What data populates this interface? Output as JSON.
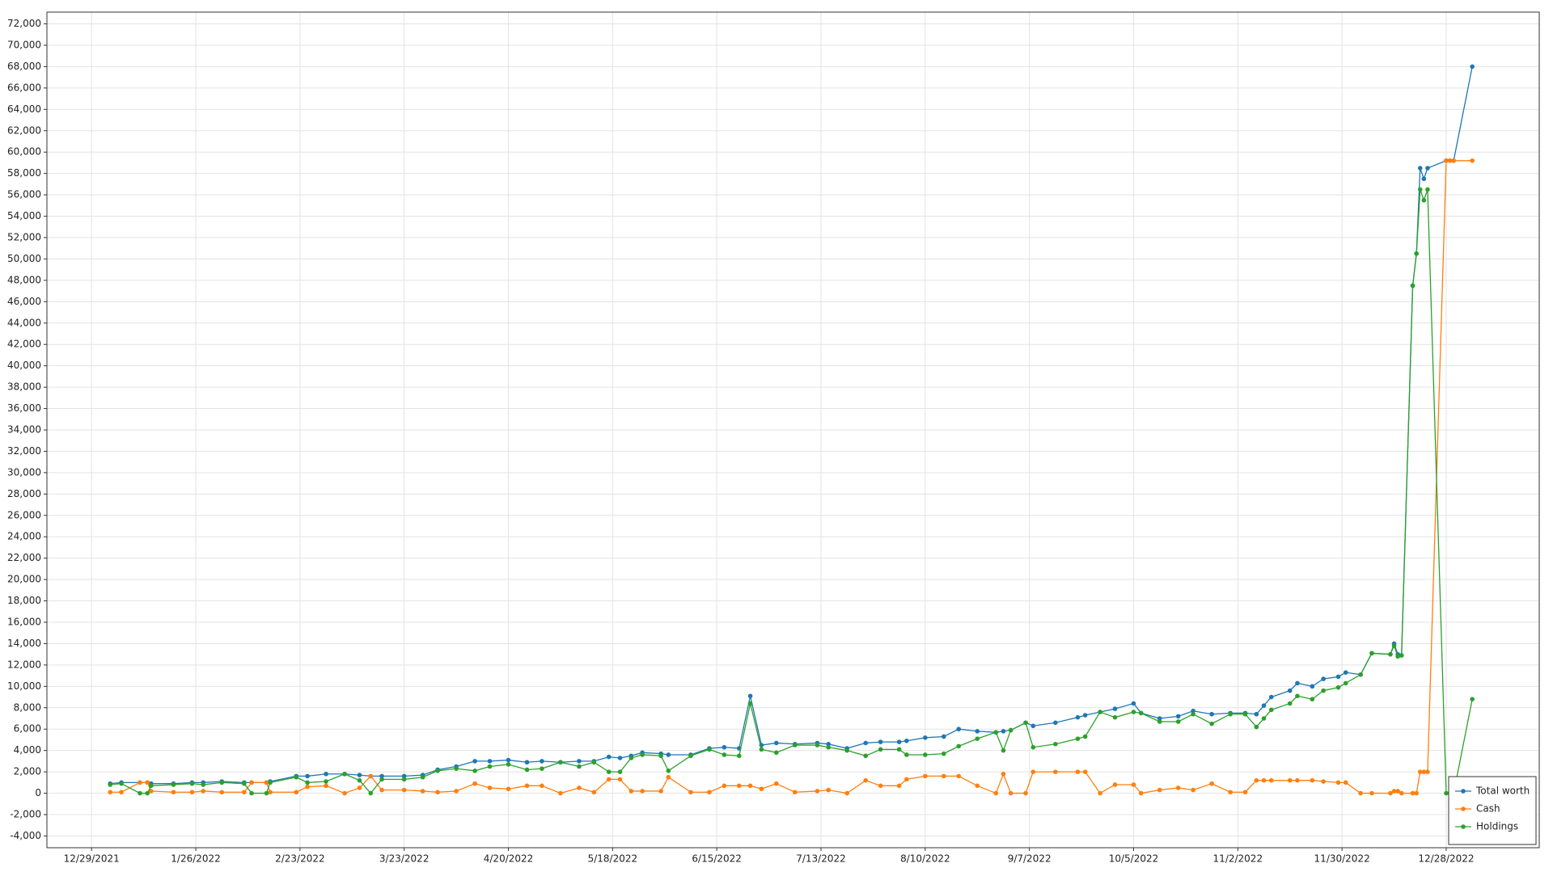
{
  "chart_data": {
    "type": "line",
    "x": [
      "2022-01-03",
      "2022-01-06",
      "2022-01-11",
      "2022-01-13",
      "2022-01-14",
      "2022-01-20",
      "2022-01-25",
      "2022-01-28",
      "2022-02-02",
      "2022-02-08",
      "2022-02-10",
      "2022-02-14",
      "2022-02-15",
      "2022-02-22",
      "2022-02-25",
      "2022-03-02",
      "2022-03-07",
      "2022-03-11",
      "2022-03-14",
      "2022-03-17",
      "2022-03-23",
      "2022-03-28",
      "2022-04-01",
      "2022-04-06",
      "2022-04-11",
      "2022-04-15",
      "2022-04-20",
      "2022-04-25",
      "2022-04-29",
      "2022-05-04",
      "2022-05-09",
      "2022-05-13",
      "2022-05-17",
      "2022-05-20",
      "2022-05-23",
      "2022-05-26",
      "2022-05-31",
      "2022-06-02",
      "2022-06-08",
      "2022-06-13",
      "2022-06-17",
      "2022-06-21",
      "2022-06-24",
      "2022-06-27",
      "2022-07-01",
      "2022-07-06",
      "2022-07-12",
      "2022-07-15",
      "2022-07-20",
      "2022-07-25",
      "2022-07-29",
      "2022-08-03",
      "2022-08-05",
      "2022-08-10",
      "2022-08-15",
      "2022-08-19",
      "2022-08-24",
      "2022-08-29",
      "2022-08-31",
      "2022-09-02",
      "2022-09-06",
      "2022-09-08",
      "2022-09-14",
      "2022-09-20",
      "2022-09-22",
      "2022-09-26",
      "2022-09-30",
      "2022-10-05",
      "2022-10-07",
      "2022-10-12",
      "2022-10-17",
      "2022-10-21",
      "2022-10-26",
      "2022-10-31",
      "2022-11-04",
      "2022-11-07",
      "2022-11-09",
      "2022-11-11",
      "2022-11-16",
      "2022-11-18",
      "2022-11-22",
      "2022-11-25",
      "2022-11-29",
      "2022-12-01",
      "2022-12-05",
      "2022-12-08",
      "2022-12-13",
      "2022-12-14",
      "2022-12-15",
      "2022-12-16",
      "2022-12-19",
      "2022-12-20",
      "2022-12-21",
      "2022-12-22",
      "2022-12-23",
      "2022-12-28",
      "2022-12-29",
      "2022-12-30",
      "2023-01-04"
    ],
    "series": [
      {
        "name": "Total worth",
        "color": "#1f77b4",
        "values": [
          900,
          1000,
          1000,
          1000,
          900,
          900,
          1000,
          1000,
          1100,
          1000,
          1000,
          1000,
          1100,
          1600,
          1600,
          1800,
          1800,
          1700,
          1600,
          1600,
          1600,
          1700,
          2200,
          2500,
          3000,
          3000,
          3100,
          2900,
          3000,
          2900,
          3000,
          3000,
          3400,
          3300,
          3500,
          3800,
          3700,
          3600,
          3600,
          4200,
          4300,
          4200,
          9100,
          4500,
          4700,
          4600,
          4700,
          4600,
          4200,
          4700,
          4800,
          4800,
          4900,
          5200,
          5300,
          6000,
          5800,
          5700,
          5800,
          5900,
          6600,
          6300,
          6600,
          7100,
          7300,
          7600,
          7900,
          8400,
          7500,
          7000,
          7200,
          7700,
          7400,
          7500,
          7500,
          7400,
          8200,
          9000,
          9600,
          10300,
          10000,
          10700,
          10900,
          11300,
          11100,
          13100,
          13000,
          14000,
          13000,
          12900,
          47500,
          50500,
          58500,
          57500,
          58500,
          59200,
          59200,
          59200,
          68000
        ]
      },
      {
        "name": "Cash",
        "color": "#ff7f0e",
        "values": [
          100,
          100,
          1000,
          1000,
          200,
          100,
          100,
          200,
          100,
          100,
          1000,
          1000,
          100,
          100,
          600,
          700,
          0,
          500,
          1600,
          300,
          300,
          200,
          100,
          200,
          900,
          500,
          400,
          700,
          700,
          0,
          500,
          100,
          1300,
          1300,
          200,
          200,
          200,
          1500,
          100,
          100,
          700,
          700,
          700,
          400,
          900,
          100,
          200,
          300,
          0,
          1200,
          700,
          700,
          1300,
          1600,
          1600,
          1600,
          700,
          0,
          1800,
          0,
          0,
          2000,
          2000,
          2000,
          2000,
          0,
          800,
          800,
          0,
          300,
          500,
          300,
          900,
          100,
          100,
          1200,
          1200,
          1200,
          1200,
          1200,
          1200,
          1100,
          1000,
          1000,
          0,
          0,
          0,
          200,
          200,
          0,
          0,
          0,
          2000,
          2000,
          2000,
          59200,
          59200,
          59200,
          59200
        ]
      },
      {
        "name": "Holdings",
        "color": "#2ca02c",
        "values": [
          800,
          900,
          0,
          0,
          700,
          800,
          900,
          800,
          1000,
          900,
          0,
          0,
          1000,
          1500,
          1000,
          1100,
          1800,
          1200,
          0,
          1300,
          1300,
          1500,
          2100,
          2300,
          2100,
          2500,
          2700,
          2200,
          2300,
          2900,
          2500,
          2900,
          2000,
          2000,
          3300,
          3600,
          3500,
          2100,
          3500,
          4100,
          3600,
          3500,
          8400,
          4100,
          3800,
          4500,
          4500,
          4300,
          4000,
          3500,
          4100,
          4100,
          3600,
          3600,
          3700,
          4400,
          5100,
          5700,
          4000,
          5900,
          6600,
          4300,
          4600,
          5100,
          5300,
          7600,
          7100,
          7600,
          7500,
          6700,
          6700,
          7400,
          6500,
          7400,
          7400,
          6200,
          7000,
          7800,
          8400,
          9100,
          8800,
          9600,
          9900,
          10300,
          11100,
          13100,
          13000,
          13800,
          12800,
          12900,
          47500,
          50500,
          56500,
          55500,
          56500,
          0,
          0,
          0,
          8800
        ]
      }
    ],
    "xlim": [
      "2021-12-17",
      "2023-01-22"
    ],
    "xticks": [
      {
        "value": "2021-12-29",
        "label": "12/29/2021"
      },
      {
        "value": "2022-01-26",
        "label": "1/26/2022"
      },
      {
        "value": "2022-02-23",
        "label": "2/23/2022"
      },
      {
        "value": "2022-03-23",
        "label": "3/23/2022"
      },
      {
        "value": "2022-04-20",
        "label": "4/20/2022"
      },
      {
        "value": "2022-05-18",
        "label": "5/18/2022"
      },
      {
        "value": "2022-06-15",
        "label": "6/15/2022"
      },
      {
        "value": "2022-07-13",
        "label": "7/13/2022"
      },
      {
        "value": "2022-08-10",
        "label": "8/10/2022"
      },
      {
        "value": "2022-09-07",
        "label": "9/7/2022"
      },
      {
        "value": "2022-10-05",
        "label": "10/5/2022"
      },
      {
        "value": "2022-11-02",
        "label": "11/2/2022"
      },
      {
        "value": "2022-11-30",
        "label": "11/30/2022"
      },
      {
        "value": "2022-12-28",
        "label": "12/28/2022"
      }
    ],
    "ylim": [
      -5100,
      73100
    ],
    "yticks": [
      {
        "value": -4000,
        "label": "-4,000"
      },
      {
        "value": -2000,
        "label": "-2,000"
      },
      0,
      {
        "value": 2000,
        "label": "2,000"
      },
      {
        "value": 4000,
        "label": "4,000"
      },
      {
        "value": 6000,
        "label": "6,000"
      },
      {
        "value": 8000,
        "label": "8,000"
      },
      {
        "value": 10000,
        "label": "10,000"
      },
      {
        "value": 12000,
        "label": "12,000"
      },
      {
        "value": 14000,
        "label": "14,000"
      },
      {
        "value": 16000,
        "label": "16,000"
      },
      {
        "value": 18000,
        "label": "18,000"
      },
      {
        "value": 20000,
        "label": "20,000"
      },
      {
        "value": 22000,
        "label": "22,000"
      },
      {
        "value": 24000,
        "label": "24,000"
      },
      {
        "value": 26000,
        "label": "26,000"
      },
      {
        "value": 28000,
        "label": "28,000"
      },
      {
        "value": 30000,
        "label": "30,000"
      },
      {
        "value": 32000,
        "label": "32,000"
      },
      {
        "value": 34000,
        "label": "34,000"
      },
      {
        "value": 36000,
        "label": "36,000"
      },
      {
        "value": 38000,
        "label": "38,000"
      },
      {
        "value": 40000,
        "label": "40,000"
      },
      {
        "value": 42000,
        "label": "42,000"
      },
      {
        "value": 44000,
        "label": "44,000"
      },
      {
        "value": 46000,
        "label": "46,000"
      },
      {
        "value": 48000,
        "label": "48,000"
      },
      {
        "value": 50000,
        "label": "50,000"
      },
      {
        "value": 52000,
        "label": "52,000"
      },
      {
        "value": 54000,
        "label": "54,000"
      },
      {
        "value": 56000,
        "label": "56,000"
      },
      {
        "value": 58000,
        "label": "58,000"
      },
      {
        "value": 60000,
        "label": "60,000"
      },
      {
        "value": 62000,
        "label": "62,000"
      },
      {
        "value": 64000,
        "label": "64,000"
      },
      {
        "value": 66000,
        "label": "66,000"
      },
      {
        "value": 68000,
        "label": "68,000"
      },
      {
        "value": 70000,
        "label": "70,000"
      },
      {
        "value": 72000,
        "label": "72,000"
      }
    ],
    "grid": true,
    "legend": "bottom-right"
  }
}
